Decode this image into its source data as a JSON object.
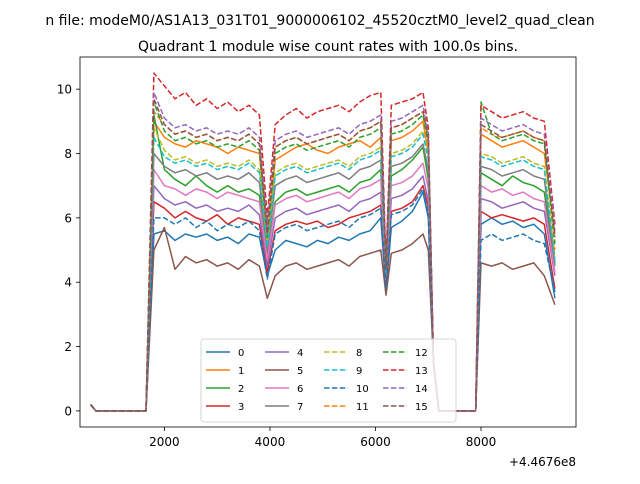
{
  "suptitle": "n file: modeM0/AS1A13_031T01_9000006102_45520cztM0_level2_quad_clean",
  "chart_data": {
    "type": "line",
    "title": "Quadrant 1 module wise count rates with 100.0s bins.",
    "xlabel": "",
    "ylabel": "",
    "x_offset_label": "+4.4676e8",
    "xlim": [
      400,
      9800
    ],
    "ylim": [
      -0.5,
      11.0
    ],
    "xticks": [
      2000,
      4000,
      6000,
      8000
    ],
    "yticks": [
      0,
      2,
      4,
      6,
      8,
      10
    ],
    "grid": false,
    "legend_loc": "lower center",
    "legend_ncol": 4,
    "x": [
      600,
      700,
      1650,
      1800,
      2000,
      2200,
      2400,
      2600,
      2800,
      3000,
      3200,
      3400,
      3600,
      3800,
      3950,
      4100,
      4300,
      4500,
      4700,
      4900,
      5100,
      5300,
      5500,
      5700,
      5900,
      6100,
      6200,
      6300,
      6500,
      6700,
      6900,
      7000,
      7100,
      7200,
      7400,
      7600,
      7800,
      7900,
      8000,
      8200,
      8400,
      8600,
      8800,
      9000,
      9200,
      9400
    ],
    "series": [
      {
        "name": "0",
        "color": "#1f77b4",
        "dash": "solid",
        "values": [
          0.2,
          0.0,
          0.0,
          5.5,
          5.6,
          5.3,
          5.5,
          5.4,
          5.5,
          5.3,
          5.4,
          5.2,
          5.5,
          5.4,
          4.2,
          5.0,
          5.3,
          5.2,
          5.1,
          5.3,
          5.2,
          5.4,
          5.3,
          5.5,
          5.6,
          6.0,
          3.7,
          5.7,
          5.9,
          6.2,
          6.8,
          6.0,
          1.5,
          0.0,
          0.0,
          0.0,
          0.0,
          0.0,
          5.8,
          6.0,
          5.8,
          5.9,
          5.7,
          5.8,
          5.5,
          3.5
        ]
      },
      {
        "name": "1",
        "color": "#ff7f0e",
        "dash": "solid",
        "values": [
          0.2,
          0.0,
          0.0,
          9.0,
          8.5,
          8.3,
          8.2,
          8.4,
          8.3,
          8.2,
          8.0,
          8.2,
          8.1,
          8.0,
          5.3,
          7.8,
          8.0,
          8.2,
          8.3,
          8.1,
          8.0,
          8.2,
          8.3,
          8.4,
          8.2,
          8.5,
          4.2,
          8.4,
          8.5,
          8.7,
          9.0,
          8.0,
          1.5,
          0.0,
          0.0,
          0.0,
          0.0,
          0.0,
          8.6,
          8.4,
          8.2,
          8.3,
          8.4,
          8.2,
          8.0,
          5.5
        ]
      },
      {
        "name": "2",
        "color": "#2ca02c",
        "dash": "solid",
        "values": [
          0.2,
          0.0,
          0.0,
          9.2,
          7.5,
          7.2,
          7.0,
          7.3,
          7.0,
          6.8,
          7.0,
          6.8,
          6.9,
          6.7,
          4.8,
          6.5,
          6.8,
          6.9,
          6.7,
          6.8,
          6.9,
          7.0,
          6.8,
          7.1,
          7.2,
          7.5,
          4.0,
          7.3,
          7.5,
          7.8,
          8.2,
          7.2,
          1.5,
          0.0,
          0.0,
          0.0,
          0.0,
          0.0,
          7.4,
          7.2,
          7.0,
          7.3,
          7.1,
          7.0,
          6.8,
          4.5
        ]
      },
      {
        "name": "3",
        "color": "#d62728",
        "dash": "solid",
        "values": [
          0.2,
          0.0,
          0.0,
          6.5,
          6.3,
          6.0,
          6.2,
          6.0,
          5.9,
          6.1,
          5.8,
          6.0,
          5.9,
          5.8,
          4.3,
          5.6,
          5.8,
          5.9,
          5.8,
          5.9,
          5.7,
          5.8,
          6.0,
          6.1,
          6.2,
          6.4,
          3.8,
          6.2,
          6.3,
          6.5,
          7.0,
          6.3,
          1.5,
          0.0,
          0.0,
          0.0,
          0.0,
          0.0,
          6.2,
          6.0,
          6.1,
          6.0,
          5.9,
          6.0,
          5.8,
          3.8
        ]
      },
      {
        "name": "4",
        "color": "#9467bd",
        "dash": "solid",
        "values": [
          0.2,
          0.0,
          0.0,
          7.0,
          6.6,
          6.4,
          6.5,
          6.3,
          6.4,
          6.2,
          6.3,
          6.2,
          6.4,
          6.1,
          4.5,
          6.0,
          6.2,
          6.3,
          6.1,
          6.2,
          6.3,
          6.4,
          6.2,
          6.5,
          6.6,
          6.8,
          4.0,
          6.6,
          6.7,
          6.9,
          7.3,
          6.5,
          1.5,
          0.0,
          0.0,
          0.0,
          0.0,
          0.0,
          6.6,
          6.5,
          6.3,
          6.4,
          6.5,
          6.3,
          6.2,
          4.2
        ]
      },
      {
        "name": "5",
        "color": "#8c564b",
        "dash": "solid",
        "values": [
          0.2,
          0.0,
          0.0,
          5.0,
          5.7,
          4.4,
          4.8,
          4.6,
          4.7,
          4.5,
          4.6,
          4.4,
          4.7,
          4.5,
          3.5,
          4.2,
          4.5,
          4.6,
          4.4,
          4.5,
          4.6,
          4.7,
          4.5,
          4.8,
          4.9,
          5.0,
          3.6,
          4.9,
          5.0,
          5.2,
          5.5,
          5.0,
          1.5,
          0.0,
          0.0,
          0.0,
          0.0,
          0.0,
          4.6,
          4.5,
          4.6,
          4.4,
          4.5,
          4.6,
          4.2,
          3.3
        ]
      },
      {
        "name": "6",
        "color": "#e377c2",
        "dash": "solid",
        "values": [
          0.2,
          0.0,
          0.0,
          7.5,
          7.0,
          6.9,
          6.7,
          6.9,
          6.8,
          6.6,
          6.8,
          6.7,
          6.6,
          6.5,
          4.7,
          6.4,
          6.6,
          6.7,
          6.5,
          6.6,
          6.7,
          6.8,
          6.6,
          6.9,
          7.0,
          7.2,
          4.1,
          7.0,
          7.1,
          7.3,
          7.7,
          6.9,
          1.5,
          0.0,
          0.0,
          0.0,
          0.0,
          0.0,
          7.0,
          6.8,
          6.9,
          6.7,
          6.8,
          6.6,
          6.5,
          4.3
        ]
      },
      {
        "name": "7",
        "color": "#7f7f7f",
        "dash": "solid",
        "values": [
          0.2,
          0.0,
          0.0,
          8.0,
          7.6,
          7.4,
          7.5,
          7.3,
          7.4,
          7.2,
          7.3,
          7.2,
          7.4,
          7.1,
          5.0,
          7.0,
          7.2,
          7.3,
          7.1,
          7.2,
          7.3,
          7.4,
          7.2,
          7.5,
          7.6,
          7.8,
          4.2,
          7.6,
          7.7,
          7.9,
          8.3,
          7.5,
          1.5,
          0.0,
          0.0,
          0.0,
          0.0,
          0.0,
          7.6,
          7.5,
          7.3,
          7.4,
          7.5,
          7.3,
          7.2,
          4.6
        ]
      },
      {
        "name": "8",
        "color": "#bcbd22",
        "dash": "dashed",
        "values": [
          0.2,
          0.0,
          0.0,
          8.8,
          8.1,
          7.8,
          7.9,
          7.7,
          7.8,
          7.6,
          7.7,
          7.6,
          7.8,
          7.5,
          5.2,
          7.4,
          7.6,
          7.7,
          7.5,
          7.6,
          7.7,
          7.8,
          7.6,
          7.9,
          8.0,
          8.2,
          4.3,
          8.0,
          8.1,
          8.3,
          8.7,
          7.9,
          1.5,
          0.0,
          0.0,
          0.0,
          0.0,
          0.0,
          8.0,
          7.9,
          7.7,
          7.8,
          7.9,
          7.7,
          7.6,
          4.8
        ]
      },
      {
        "name": "9",
        "color": "#17becf",
        "dash": "dashed",
        "values": [
          0.2,
          0.0,
          0.0,
          8.5,
          7.9,
          7.7,
          7.8,
          7.6,
          7.7,
          7.5,
          7.6,
          7.5,
          7.7,
          7.4,
          5.1,
          7.3,
          7.5,
          7.6,
          7.4,
          7.5,
          7.6,
          7.7,
          7.5,
          7.8,
          7.9,
          8.1,
          4.3,
          7.9,
          8.0,
          8.2,
          8.6,
          7.8,
          1.5,
          0.0,
          0.0,
          0.0,
          0.0,
          0.0,
          7.9,
          7.8,
          7.6,
          7.7,
          7.8,
          7.6,
          7.5,
          4.7
        ]
      },
      {
        "name": "10",
        "color": "#1f77b4",
        "dash": "dashed",
        "values": [
          0.2,
          0.0,
          0.0,
          6.0,
          6.0,
          5.8,
          6.0,
          5.7,
          5.9,
          5.6,
          5.8,
          5.7,
          5.9,
          5.6,
          4.1,
          5.5,
          5.7,
          5.8,
          5.6,
          5.7,
          5.8,
          5.9,
          5.7,
          6.0,
          6.1,
          6.3,
          3.8,
          6.1,
          6.2,
          6.4,
          6.9,
          6.1,
          1.5,
          0.0,
          0.0,
          0.0,
          0.0,
          0.0,
          5.3,
          5.5,
          5.3,
          5.4,
          5.5,
          5.3,
          5.2,
          3.7
        ]
      },
      {
        "name": "11",
        "color": "#ff7f0e",
        "dash": "dashed",
        "values": [
          0.2,
          0.0,
          0.0,
          9.3,
          8.9,
          8.6,
          8.7,
          8.5,
          8.6,
          8.4,
          8.5,
          8.4,
          8.6,
          8.3,
          5.6,
          8.2,
          8.4,
          8.5,
          8.3,
          8.4,
          8.5,
          8.6,
          8.4,
          8.7,
          8.8,
          9.0,
          4.4,
          8.8,
          8.9,
          9.1,
          9.3,
          8.4,
          1.5,
          0.0,
          0.0,
          0.0,
          0.0,
          0.0,
          8.8,
          8.6,
          8.5,
          8.6,
          8.7,
          8.5,
          8.4,
          5.0
        ]
      },
      {
        "name": "12",
        "color": "#2ca02c",
        "dash": "dashed",
        "values": [
          0.2,
          0.0,
          0.0,
          9.6,
          8.7,
          8.4,
          8.5,
          8.3,
          8.4,
          8.2,
          8.3,
          8.2,
          8.4,
          8.1,
          5.4,
          8.0,
          8.2,
          8.3,
          8.1,
          8.2,
          8.3,
          8.4,
          8.2,
          8.5,
          8.6,
          8.8,
          4.4,
          8.6,
          8.7,
          8.9,
          9.2,
          8.3,
          1.5,
          0.0,
          0.0,
          0.0,
          0.0,
          0.0,
          9.6,
          8.6,
          8.4,
          8.5,
          8.6,
          8.4,
          8.3,
          5.2
        ]
      },
      {
        "name": "13",
        "color": "#d62728",
        "dash": "dashed",
        "values": [
          0.2,
          0.0,
          0.0,
          10.5,
          10.1,
          9.7,
          9.9,
          9.5,
          9.7,
          9.4,
          9.6,
          9.3,
          9.5,
          9.2,
          6.0,
          8.9,
          9.2,
          9.4,
          9.1,
          9.3,
          9.4,
          9.5,
          9.3,
          9.6,
          9.8,
          9.9,
          4.6,
          9.5,
          9.6,
          9.7,
          9.9,
          8.8,
          1.5,
          0.0,
          0.0,
          0.0,
          0.0,
          0.0,
          9.5,
          9.3,
          9.1,
          9.2,
          9.3,
          9.1,
          9.0,
          5.8
        ]
      },
      {
        "name": "14",
        "color": "#9467bd",
        "dash": "dashed",
        "values": [
          0.2,
          0.0,
          0.0,
          9.9,
          9.1,
          8.8,
          8.9,
          8.7,
          8.8,
          8.6,
          8.7,
          8.6,
          8.8,
          8.5,
          5.7,
          8.4,
          8.6,
          8.7,
          8.5,
          8.6,
          8.7,
          8.8,
          8.6,
          8.9,
          9.0,
          9.2,
          4.5,
          9.0,
          9.1,
          9.3,
          9.5,
          8.6,
          1.5,
          0.0,
          0.0,
          0.0,
          0.0,
          0.0,
          9.1,
          8.9,
          8.7,
          8.8,
          8.9,
          8.7,
          8.6,
          5.6
        ]
      },
      {
        "name": "15",
        "color": "#8c564b",
        "dash": "dashed",
        "values": [
          0.2,
          0.0,
          0.0,
          9.7,
          8.9,
          8.6,
          8.7,
          8.5,
          8.6,
          8.4,
          8.5,
          8.4,
          8.6,
          8.3,
          5.5,
          8.2,
          8.4,
          8.5,
          8.3,
          8.4,
          8.5,
          8.6,
          8.4,
          8.7,
          8.8,
          9.0,
          4.4,
          8.8,
          8.9,
          9.1,
          9.3,
          8.5,
          1.5,
          0.0,
          0.0,
          0.0,
          0.0,
          0.0,
          8.9,
          8.7,
          8.5,
          8.6,
          8.7,
          8.5,
          8.4,
          5.4
        ]
      }
    ]
  }
}
